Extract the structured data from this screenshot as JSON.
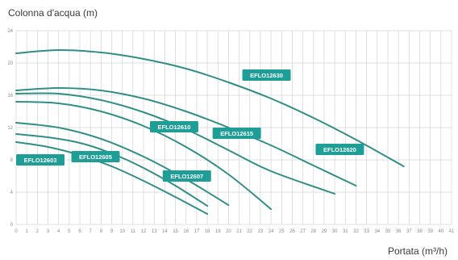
{
  "chart_data": {
    "type": "line",
    "ylabel": "Colonna d'acqua (m)",
    "xlabel": "Portata (m³/h)",
    "xlim": [
      0,
      41
    ],
    "ylim": [
      0,
      24
    ],
    "x_ticks": [
      0,
      1,
      2,
      3,
      4,
      5,
      6,
      7,
      8,
      9,
      10,
      11,
      12,
      13,
      14,
      15,
      16,
      17,
      18,
      19,
      20,
      21,
      22,
      23,
      24,
      25,
      26,
      27,
      28,
      29,
      30,
      31,
      32,
      33,
      34,
      35,
      36,
      37,
      38,
      39,
      40,
      41
    ],
    "y_ticks": [
      0,
      4,
      8,
      12,
      16,
      20,
      24
    ],
    "grid": true,
    "line_color": "#2f8f86",
    "label_fill": "#1e9e96",
    "series": [
      {
        "name": "EFLO12603",
        "x": [
          0,
          3,
          6,
          9,
          12,
          15,
          18
        ],
        "y": [
          10.2,
          9.6,
          8.6,
          7.2,
          5.4,
          3.4,
          1.3
        ]
      },
      {
        "name": "EFLO12605",
        "x": [
          0,
          3,
          6,
          9,
          12,
          15,
          18
        ],
        "y": [
          11.2,
          10.8,
          10.1,
          8.8,
          7.0,
          4.8,
          2.3
        ]
      },
      {
        "name": "EFLO12607",
        "x": [
          0,
          4,
          8,
          12,
          16,
          20
        ],
        "y": [
          12.6,
          12.0,
          10.6,
          8.4,
          5.6,
          2.4
        ]
      },
      {
        "name": "EFLO12610",
        "x": [
          0,
          4,
          8,
          12,
          16,
          20,
          24
        ],
        "y": [
          15.2,
          15.0,
          14.0,
          12.2,
          9.6,
          6.2,
          1.9
        ]
      },
      {
        "name": "EFLO12615",
        "x": [
          0,
          4,
          8,
          12,
          16,
          20,
          24,
          30
        ],
        "y": [
          16.2,
          16.2,
          15.4,
          13.9,
          11.8,
          9.2,
          6.6,
          3.8
        ]
      },
      {
        "name": "EFLO12620",
        "x": [
          0,
          4,
          8,
          12,
          16,
          20,
          24,
          28,
          32
        ],
        "y": [
          16.6,
          16.9,
          16.6,
          15.6,
          14.0,
          12.0,
          9.8,
          7.3,
          4.8
        ]
      },
      {
        "name": "EFLO12630",
        "x": [
          0,
          4,
          8,
          12,
          16,
          20,
          24,
          28,
          32,
          36.5
        ],
        "y": [
          21.2,
          21.6,
          21.3,
          20.5,
          19.3,
          17.6,
          15.6,
          13.2,
          10.5,
          7.2
        ]
      }
    ],
    "labels": [
      {
        "text": "EFLO12630",
        "x": 21.3,
        "y": 18.5
      },
      {
        "text": "EFLO12610",
        "x": 12.6,
        "y": 12.1
      },
      {
        "text": "EFLO12615",
        "x": 18.5,
        "y": 11.3
      },
      {
        "text": "EFLO12620",
        "x": 28.2,
        "y": 9.3
      },
      {
        "text": "EFLO12605",
        "x": 5.2,
        "y": 8.4
      },
      {
        "text": "EFLO12603",
        "x": 0,
        "y": 8.0
      },
      {
        "text": "EFLO12607",
        "x": 13.8,
        "y": 6.0
      }
    ]
  }
}
